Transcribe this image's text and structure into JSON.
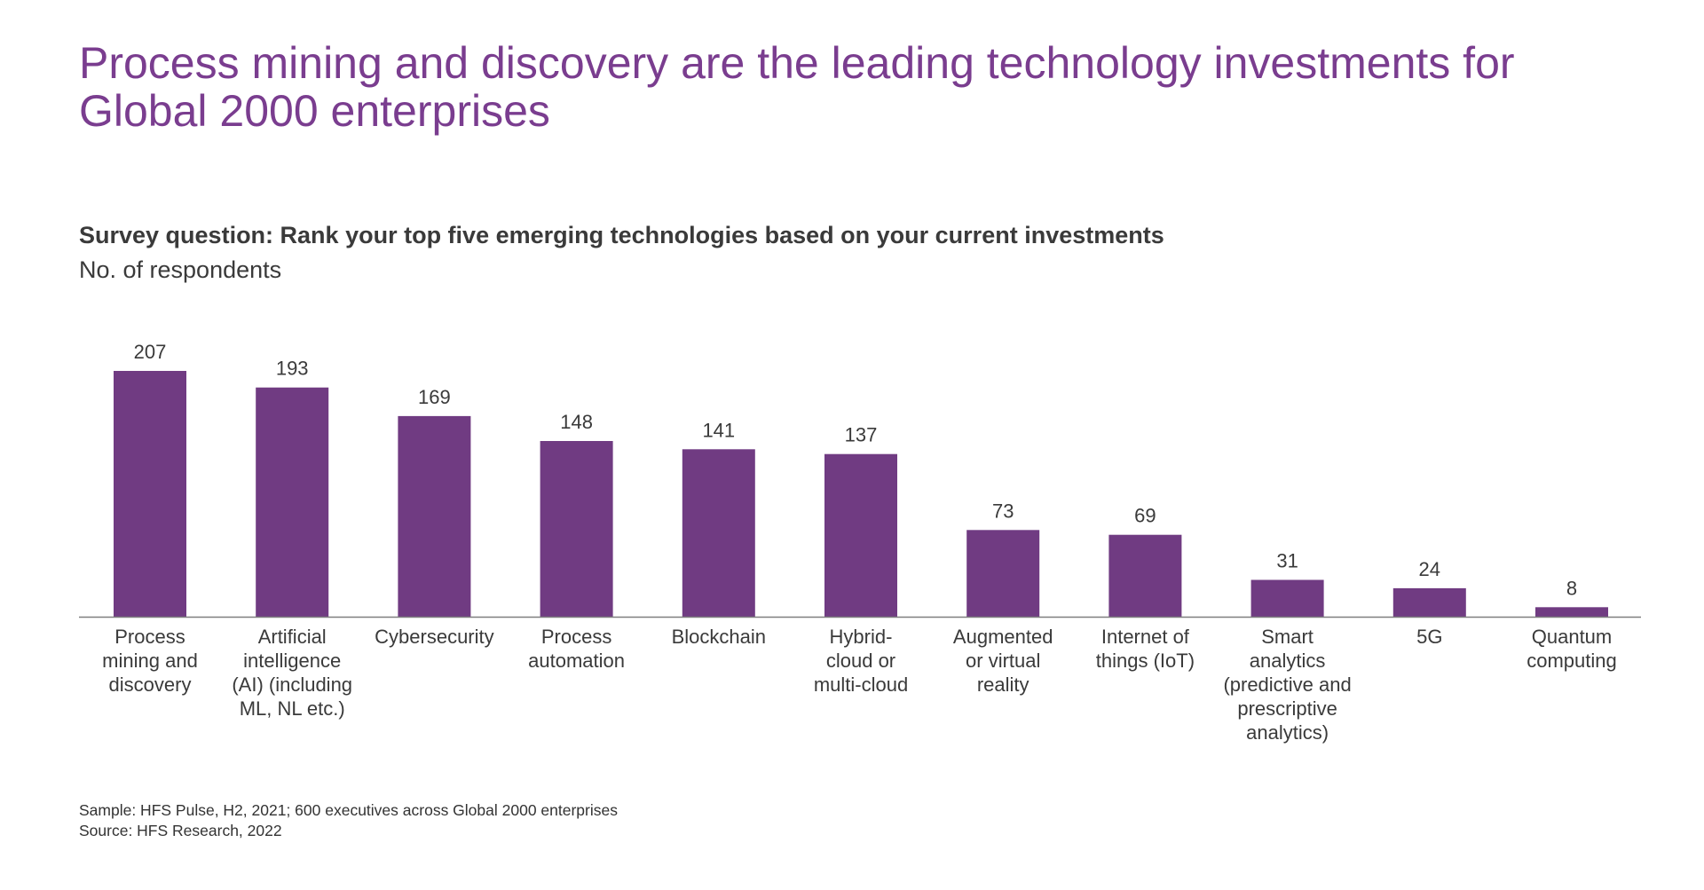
{
  "title_lines": [
    "Process mining and discovery are the leading technology investments for",
    "Global 2000 enterprises"
  ],
  "survey_question": "Survey question: Rank your top five emerging technologies based on your current investments",
  "unit_label": "No. of respondents",
  "footnotes": {
    "sample": "Sample: HFS Pulse, H2, 2021; 600 executives across Global 2000 enterprises",
    "source": "Source: HFS Research, 2022"
  },
  "colors": {
    "title": "#7a3d8f",
    "bar": "#703b82",
    "axis": "#7f7f7f",
    "text": "#3a3a3a"
  },
  "chart_data": {
    "type": "bar",
    "categories": [
      [
        "Process",
        "mining and",
        "discovery"
      ],
      [
        "Artificial",
        "intelligence",
        "(AI) (including",
        "ML, NL etc.)"
      ],
      [
        "Cybersecurity"
      ],
      [
        "Process",
        "automation"
      ],
      [
        "Blockchain"
      ],
      [
        "Hybrid-",
        "cloud or",
        "multi-cloud"
      ],
      [
        "Augmented",
        "or virtual",
        "reality"
      ],
      [
        "Internet of",
        "things (IoT)"
      ],
      [
        "Smart",
        "analytics",
        "(predictive and",
        "prescriptive",
        "analytics)"
      ],
      [
        "5G"
      ],
      [
        "Quantum",
        "computing"
      ]
    ],
    "values": [
      207,
      193,
      169,
      148,
      141,
      137,
      73,
      69,
      31,
      24,
      8
    ],
    "ylim": [
      0,
      207
    ],
    "grid": false,
    "data_labels": true
  }
}
